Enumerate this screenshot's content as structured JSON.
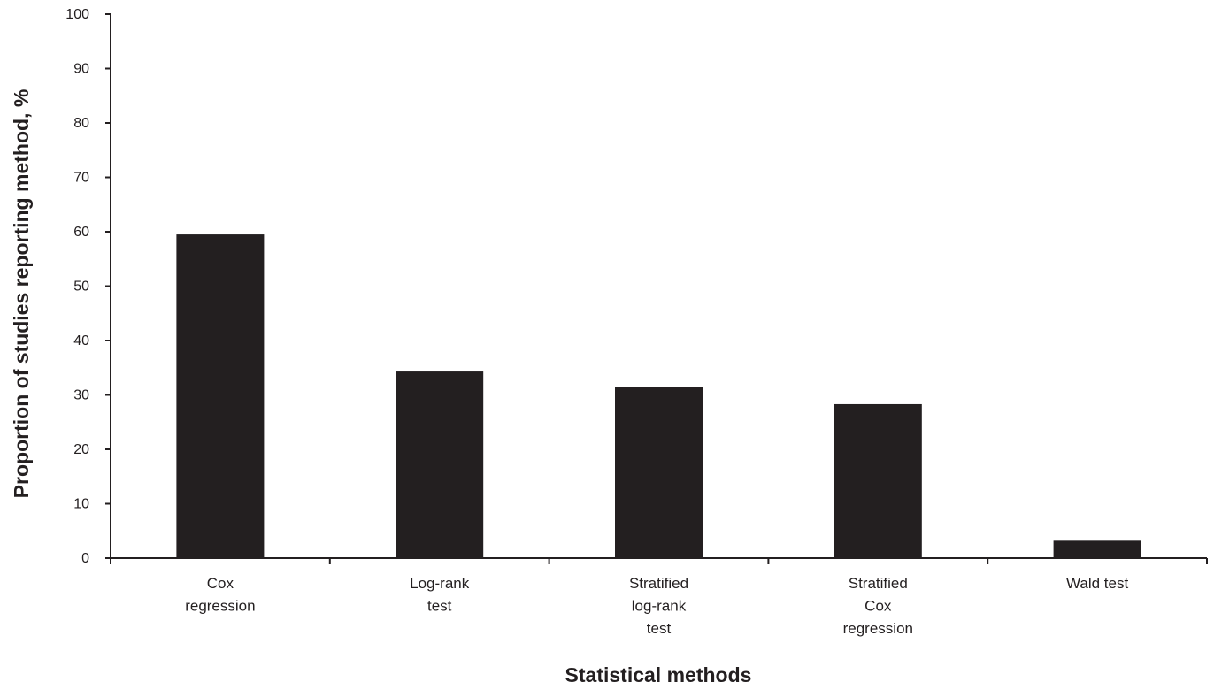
{
  "chart_data": {
    "type": "bar",
    "categories": [
      [
        "Cox",
        "regression"
      ],
      [
        "Log-rank",
        "test"
      ],
      [
        "Stratified",
        "log-rank",
        "test"
      ],
      [
        "Stratified",
        "Cox",
        "regression"
      ],
      [
        "Wald test"
      ]
    ],
    "values": [
      59.5,
      34.3,
      31.5,
      28.3,
      3.2
    ],
    "xlabel": "Statistical methods",
    "ylabel": "Proportion of studies reporting method, %",
    "ylim": [
      0,
      100
    ],
    "yticks": [
      0,
      10,
      20,
      30,
      40,
      50,
      60,
      70,
      80,
      90,
      100
    ],
    "grid": false,
    "legend": "none",
    "colors": {
      "bar": "#231f20",
      "axis": "#231f20",
      "text": "#231f20"
    }
  }
}
